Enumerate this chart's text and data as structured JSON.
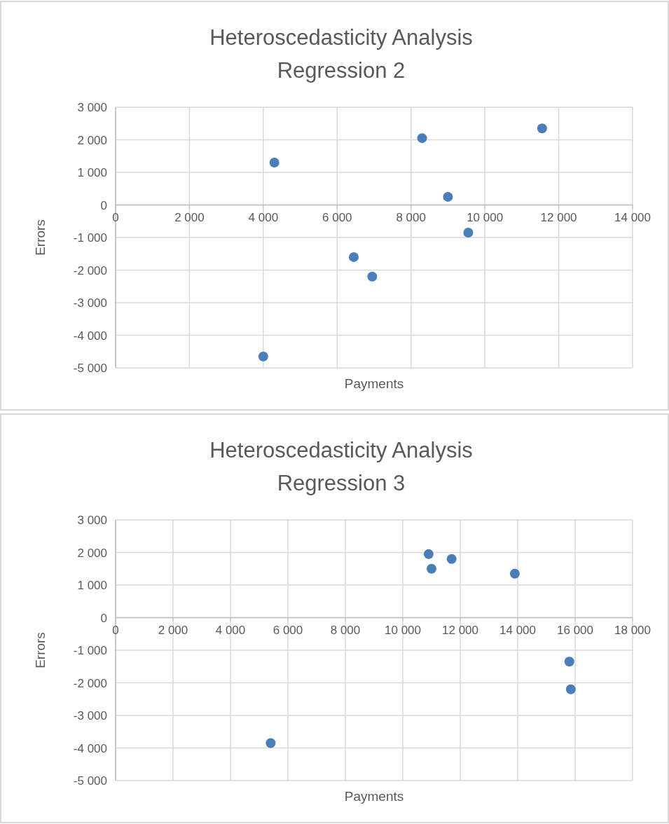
{
  "chart_data": [
    {
      "type": "scatter",
      "title": "Heteroscedasticity Analysis\nRegression 2",
      "xlabel": "Payments",
      "ylabel": "Errors",
      "marker": "circle",
      "grid": true,
      "xlim": [
        0,
        14000
      ],
      "xticks": [
        0,
        {
          "value": 2000,
          "label": "2 000"
        },
        {
          "value": 4000,
          "label": "4 000"
        },
        {
          "value": 6000,
          "label": "6 000"
        },
        {
          "value": 8000,
          "label": "8 000"
        },
        {
          "value": 10000,
          "label": "10 000"
        },
        {
          "value": 12000,
          "label": "12 000"
        },
        {
          "value": 14000,
          "label": "14 000"
        }
      ],
      "ylim": [
        -5000,
        3000
      ],
      "yticks": [
        {
          "value": -5000,
          "label": "-5 000"
        },
        {
          "value": -4000,
          "label": "-4 000"
        },
        {
          "value": -3000,
          "label": "-3 000"
        },
        {
          "value": -2000,
          "label": "-2 000"
        },
        {
          "value": -1000,
          "label": "-1 000"
        },
        0,
        {
          "value": 1000,
          "label": "1 000"
        },
        {
          "value": 2000,
          "label": "2 000"
        },
        {
          "value": 3000,
          "label": "3 000"
        }
      ],
      "series": [
        {
          "color": "#4a7ebb",
          "x": [
            4300,
            8300,
            11550,
            9000,
            9550,
            6450,
            6950,
            4000
          ],
          "values": [
            1300,
            2050,
            2350,
            250,
            -850,
            -1600,
            -2200,
            -4650
          ]
        }
      ]
    },
    {
      "type": "scatter",
      "title": "Heteroscedasticity Analysis\nRegression 3",
      "xlabel": "Payments",
      "ylabel": "Errors",
      "marker": "circle",
      "grid": true,
      "xlim": [
        0,
        18000
      ],
      "xticks": [
        0,
        {
          "value": 2000,
          "label": "2 000"
        },
        {
          "value": 4000,
          "label": "4 000"
        },
        {
          "value": 6000,
          "label": "6 000"
        },
        {
          "value": 8000,
          "label": "8 000"
        },
        {
          "value": 10000,
          "label": "10 000"
        },
        {
          "value": 12000,
          "label": "12 000"
        },
        {
          "value": 14000,
          "label": "14 000"
        },
        {
          "value": 16000,
          "label": "16 000"
        },
        {
          "value": 18000,
          "label": "18 000"
        }
      ],
      "ylim": [
        -5000,
        3000
      ],
      "yticks": [
        {
          "value": -5000,
          "label": "-5 000"
        },
        {
          "value": -4000,
          "label": "-4 000"
        },
        {
          "value": -3000,
          "label": "-3 000"
        },
        {
          "value": -2000,
          "label": "-2 000"
        },
        {
          "value": -1000,
          "label": "-1 000"
        },
        0,
        {
          "value": 1000,
          "label": "1 000"
        },
        {
          "value": 2000,
          "label": "2 000"
        },
        {
          "value": 3000,
          "label": "3 000"
        }
      ],
      "series": [
        {
          "color": "#4a7ebb",
          "x": [
            10900,
            11000,
            11700,
            13900,
            15800,
            15850,
            5400
          ],
          "values": [
            1950,
            1500,
            1800,
            1350,
            -1350,
            -2200,
            -3850
          ]
        }
      ]
    }
  ]
}
